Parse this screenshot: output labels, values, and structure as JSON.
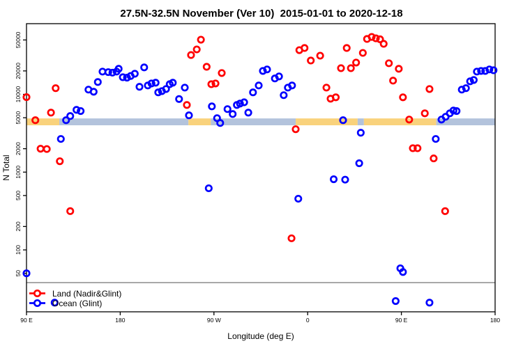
{
  "chart_data": {
    "type": "scatter",
    "title": "27.5N-32.5N November (Ver 10)  2015-01-01 to 2020-12-18",
    "xlabel": "Longitude (deg E)",
    "ylabel": "N Total",
    "x_axis": {
      "min": 90,
      "max": 540,
      "ticks": [
        {
          "value": 90,
          "label": "90 E"
        },
        {
          "value": 180,
          "label": "180"
        },
        {
          "value": 270,
          "label": "90 W"
        },
        {
          "value": 360,
          "label": "0"
        },
        {
          "value": 450,
          "label": "90 E"
        },
        {
          "value": 540,
          "label": "180"
        }
      ]
    },
    "y_axis": {
      "scale": "log",
      "min": 16,
      "max": 81000,
      "ticks": [
        {
          "value": 50,
          "label": "50"
        },
        {
          "value": 100,
          "label": "100"
        },
        {
          "value": 200,
          "label": "200"
        },
        {
          "value": 500,
          "label": "500"
        },
        {
          "value": 1000,
          "label": "1000"
        },
        {
          "value": 2000,
          "label": "2000"
        },
        {
          "value": 5000,
          "label": "5000"
        },
        {
          "value": 10000,
          "label": "10000"
        },
        {
          "value": 20000,
          "label": "20000"
        },
        {
          "value": 50000,
          "label": "50000"
        }
      ]
    },
    "threshold_line": {
      "value": 38,
      "color": "#808080"
    },
    "surface_band": {
      "value_top": 4900,
      "value_bottom": 4000,
      "land_color": "#F9D27C",
      "ocean_color": "#B3C3DC",
      "segments": [
        {
          "from": 90,
          "to": 121.5,
          "surface": "land"
        },
        {
          "from": 121.5,
          "to": 245.5,
          "surface": "ocean"
        },
        {
          "from": 245.5,
          "to": 267,
          "surface": "land"
        },
        {
          "from": 267,
          "to": 348.5,
          "surface": "ocean"
        },
        {
          "from": 348.5,
          "to": 408,
          "surface": "land"
        },
        {
          "from": 408,
          "to": 414,
          "surface": "ocean"
        },
        {
          "from": 414,
          "to": 483.5,
          "surface": "land"
        },
        {
          "from": 483.5,
          "to": 540,
          "surface": "ocean"
        }
      ]
    },
    "series": [
      {
        "name": "Land (Nadir&Glint)",
        "color": "#FF0000",
        "marker": "open-circle",
        "points": [
          [
            90,
            9200
          ],
          [
            98.5,
            4650
          ],
          [
            103.5,
            2000
          ],
          [
            109.5,
            1980
          ],
          [
            113.5,
            5820
          ],
          [
            118,
            12000
          ],
          [
            122,
            1380
          ],
          [
            132,
            315
          ],
          [
            244,
            7300
          ],
          [
            248,
            32000
          ],
          [
            253.5,
            37800
          ],
          [
            257.5,
            50400
          ],
          [
            263,
            22600
          ],
          [
            267.5,
            13500
          ],
          [
            271.5,
            13800
          ],
          [
            277.5,
            18800
          ],
          [
            344.5,
            141
          ],
          [
            348.5,
            3560
          ],
          [
            352,
            37000
          ],
          [
            357,
            39400
          ],
          [
            363,
            27200
          ],
          [
            372,
            31400
          ],
          [
            378,
            12200
          ],
          [
            382,
            8790
          ],
          [
            387,
            9160
          ],
          [
            392,
            21700
          ],
          [
            397.5,
            39400
          ],
          [
            401.5,
            21700
          ],
          [
            406.5,
            25600
          ],
          [
            413,
            34100
          ],
          [
            417,
            51500
          ],
          [
            421.5,
            54700
          ],
          [
            425.5,
            52500
          ],
          [
            429.5,
            51000
          ],
          [
            433,
            44600
          ],
          [
            438,
            25100
          ],
          [
            442,
            15000
          ],
          [
            447.5,
            21300
          ],
          [
            451.5,
            9160
          ],
          [
            457.5,
            4740
          ],
          [
            461,
            2030
          ],
          [
            465.5,
            2030
          ],
          [
            472.5,
            5700
          ],
          [
            477,
            11700
          ],
          [
            481,
            1500
          ],
          [
            492,
            315
          ]
        ]
      },
      {
        "name": "Ocean (Glint)",
        "color": "#0000FF",
        "marker": "open-circle",
        "points": [
          [
            90,
            50
          ],
          [
            117,
            21
          ],
          [
            123,
            2670
          ],
          [
            128,
            4650
          ],
          [
            132,
            5260
          ],
          [
            138,
            6320
          ],
          [
            142,
            6100
          ],
          [
            149.5,
            11500
          ],
          [
            154.5,
            10800
          ],
          [
            158.5,
            14400
          ],
          [
            163,
            19600
          ],
          [
            168.5,
            19300
          ],
          [
            172.5,
            19000
          ],
          [
            176.5,
            19600
          ],
          [
            178.5,
            21300
          ],
          [
            182.5,
            16600
          ],
          [
            186.5,
            16400
          ],
          [
            190,
            17200
          ],
          [
            194,
            18400
          ],
          [
            198.5,
            12500
          ],
          [
            203,
            22200
          ],
          [
            206.5,
            13000
          ],
          [
            210,
            13800
          ],
          [
            214,
            14100
          ],
          [
            216.5,
            10600
          ],
          [
            220,
            11000
          ],
          [
            224,
            11700
          ],
          [
            227.5,
            13500
          ],
          [
            230.5,
            14100
          ],
          [
            236.5,
            8700
          ],
          [
            242,
            12200
          ],
          [
            246,
            5370
          ],
          [
            265,
            620
          ],
          [
            268,
            7000
          ],
          [
            273,
            4940
          ],
          [
            276,
            4280
          ],
          [
            283,
            6460
          ],
          [
            288,
            5580
          ],
          [
            292,
            7300
          ],
          [
            295,
            7600
          ],
          [
            299,
            7900
          ],
          [
            303,
            5820
          ],
          [
            307.5,
            10600
          ],
          [
            313,
            13000
          ],
          [
            317,
            20000
          ],
          [
            321,
            20900
          ],
          [
            328.5,
            16000
          ],
          [
            332.5,
            17000
          ],
          [
            337,
            9750
          ],
          [
            341,
            12200
          ],
          [
            345,
            13000
          ],
          [
            351,
            455
          ],
          [
            385,
            810
          ],
          [
            394,
            4650
          ],
          [
            396,
            800
          ],
          [
            409.5,
            1300
          ],
          [
            411,
            3210
          ],
          [
            444.5,
            22
          ],
          [
            449,
            58
          ],
          [
            451.5,
            52
          ],
          [
            477,
            21
          ],
          [
            483,
            2670
          ],
          [
            488.5,
            4740
          ],
          [
            492.5,
            5150
          ],
          [
            496.5,
            5700
          ],
          [
            500,
            6190
          ],
          [
            503,
            6100
          ],
          [
            508,
            11500
          ],
          [
            512,
            12000
          ],
          [
            516,
            14700
          ],
          [
            519.5,
            15300
          ],
          [
            522.5,
            19600
          ],
          [
            526.5,
            20000
          ],
          [
            530.5,
            20000
          ],
          [
            534.5,
            20900
          ],
          [
            538.5,
            20400
          ]
        ]
      }
    ],
    "legend": {
      "position": "bottom-left"
    }
  }
}
